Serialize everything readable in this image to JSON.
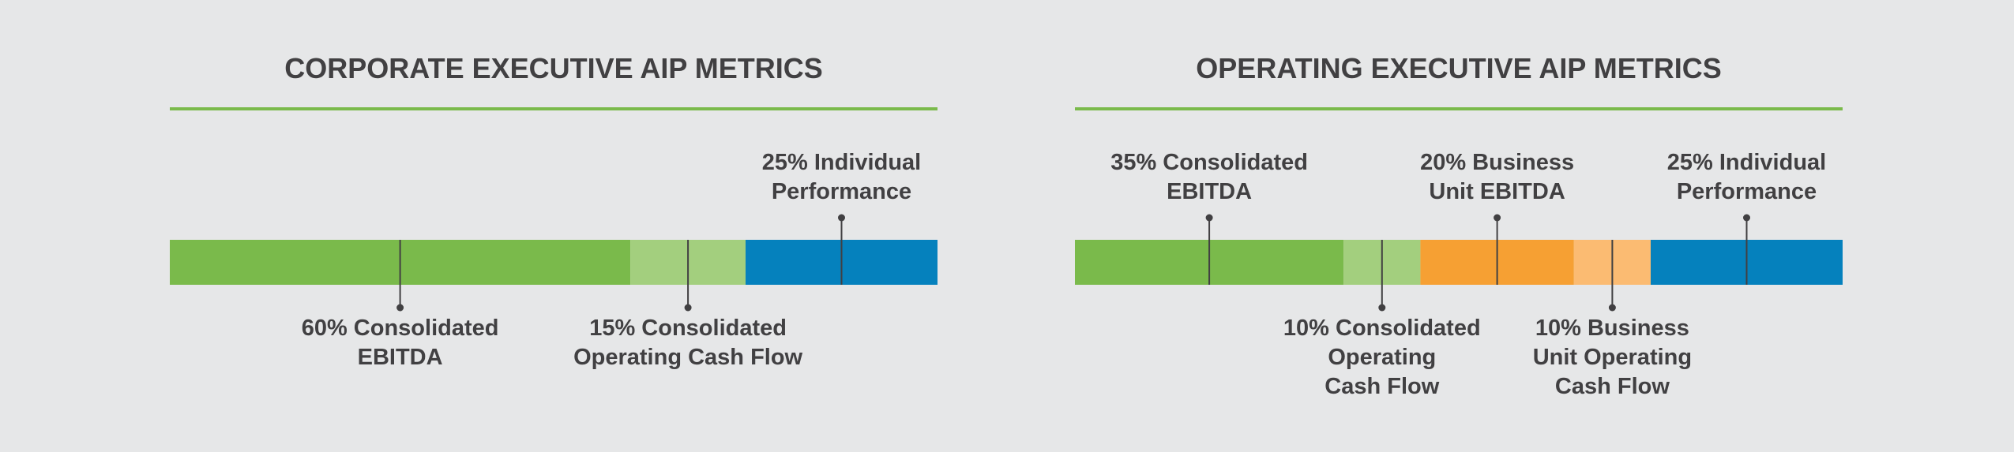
{
  "chart_data": [
    {
      "type": "bar",
      "stacked": true,
      "title": "CORPORATE EXECUTIVE AIP METRICS",
      "xlim": [
        0,
        100
      ],
      "values": [
        60,
        15,
        25
      ],
      "value_labels": [
        "60% Consolidated\nEBITDA",
        "15% Consolidated\nOperating Cash Flow",
        "25% Individual\nPerformance"
      ],
      "label_positions": [
        "below",
        "below",
        "above"
      ],
      "colors": [
        "#7aba4b",
        "#a3cf7e",
        "#0581bd"
      ]
    },
    {
      "type": "bar",
      "stacked": true,
      "title": "OPERATING EXECUTIVE AIP METRICS",
      "xlim": [
        0,
        100
      ],
      "values": [
        35,
        10,
        20,
        10,
        25
      ],
      "value_labels": [
        "35% Consolidated\nEBITDA",
        "10% Consolidated\nOperating\nCash Flow",
        "20% Business\nUnit EBITDA",
        "10% Business\nUnit Operating\nCash Flow",
        "25% Individual\nPerformance"
      ],
      "label_positions": [
        "above",
        "below",
        "above",
        "below",
        "above"
      ],
      "colors": [
        "#7aba4b",
        "#a3cf7e",
        "#f6a033",
        "#fbbb72",
        "#0581bd"
      ]
    }
  ]
}
